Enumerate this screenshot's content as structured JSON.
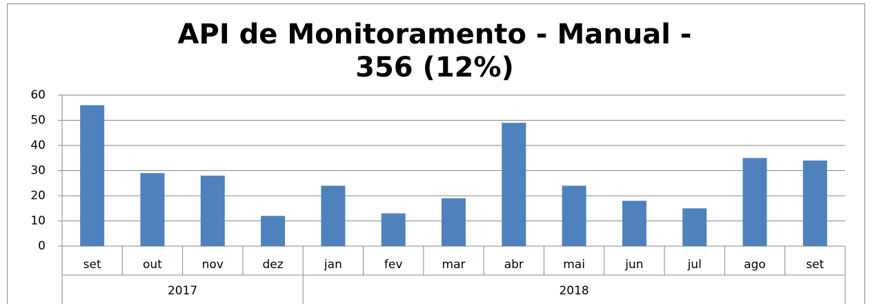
{
  "chart_data": {
    "type": "bar",
    "title": "API de Monitoramento - Manual - 356 (12%)",
    "color": "#4f81bd",
    "ylim": [
      0,
      60
    ],
    "yticks": [
      0,
      10,
      20,
      30,
      40,
      50,
      60
    ],
    "grid": true,
    "groups": [
      {
        "label": "2017",
        "categories": [
          "set",
          "out",
          "nov",
          "dez"
        ],
        "values": [
          56,
          29,
          28,
          12
        ]
      },
      {
        "label": "2018",
        "categories": [
          "jan",
          "fev",
          "mar",
          "abr",
          "mai",
          "jun",
          "jul",
          "ago",
          "set"
        ],
        "values": [
          24,
          13,
          19,
          49,
          24,
          18,
          15,
          35,
          34
        ]
      }
    ]
  }
}
